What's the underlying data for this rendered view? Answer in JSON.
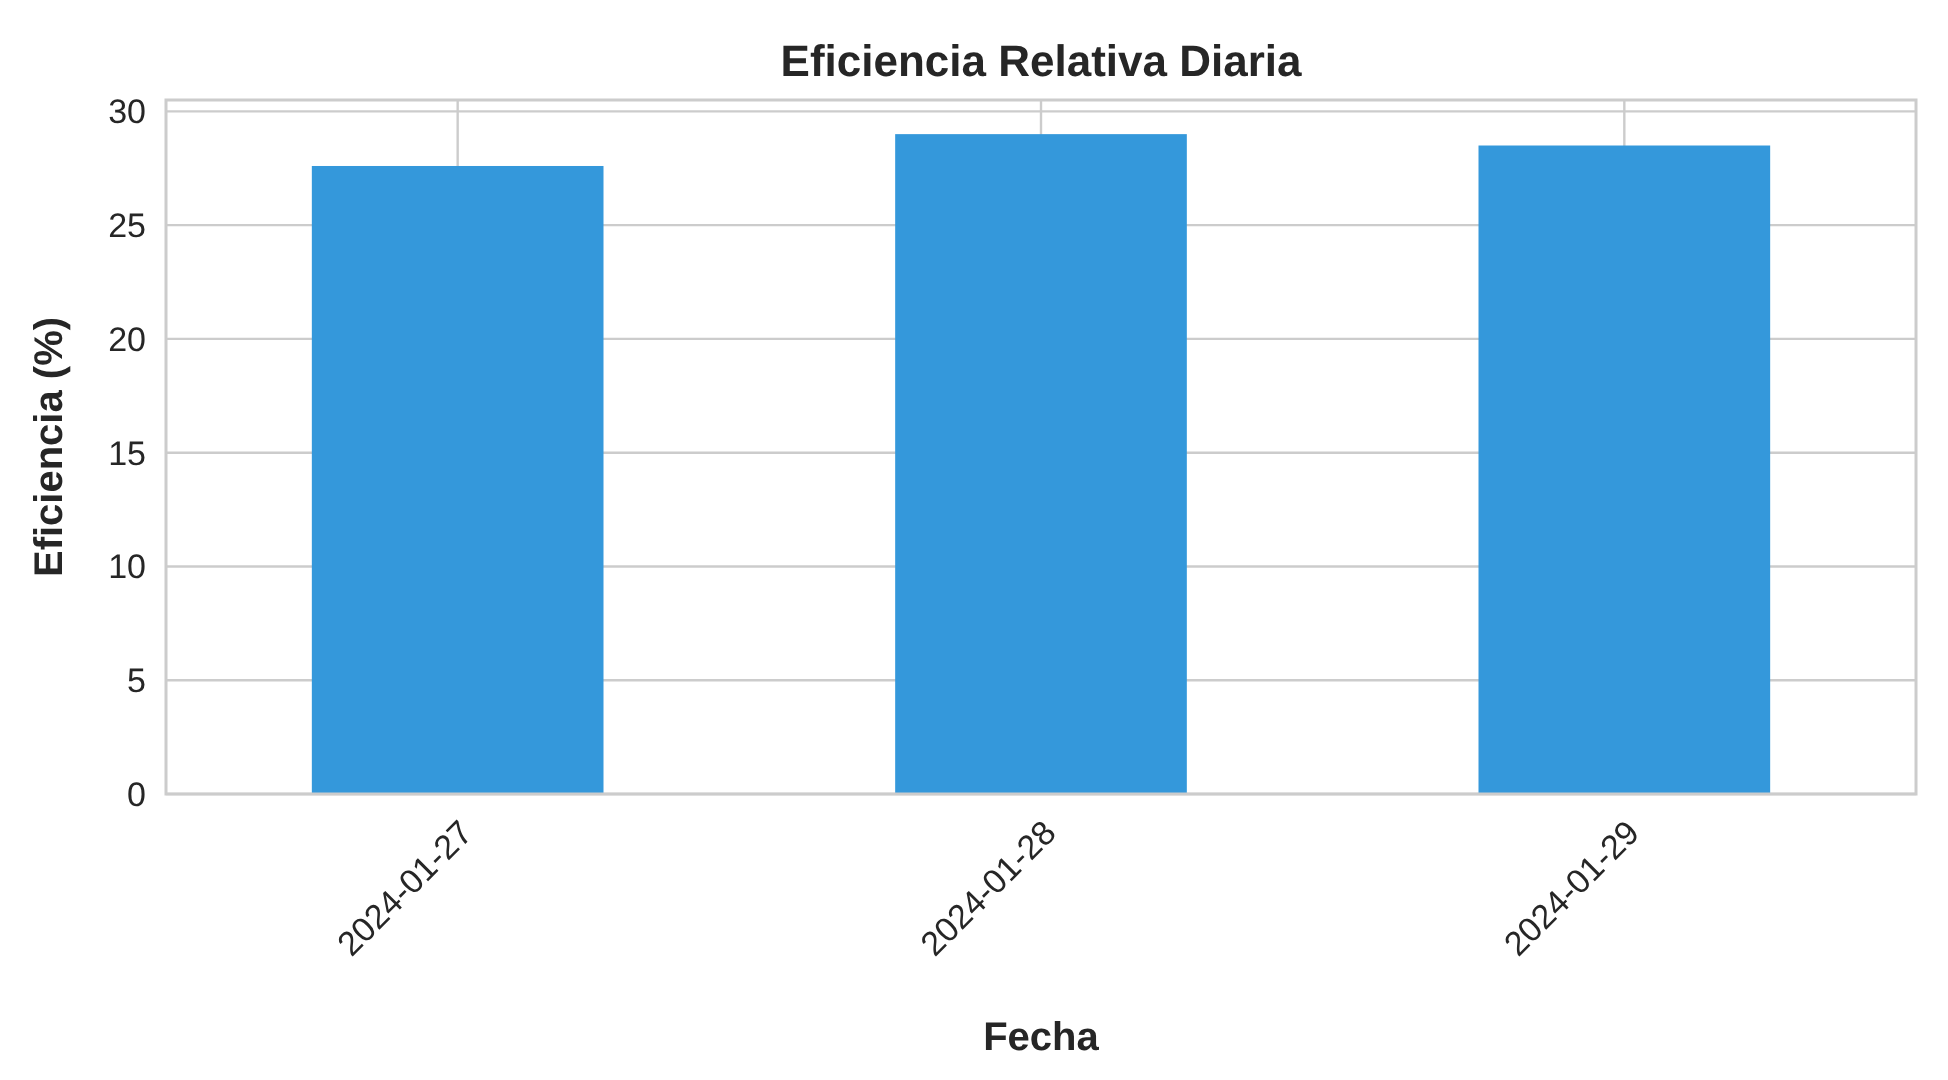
{
  "chart_data": {
    "type": "bar",
    "title": "Eficiencia Relativa Diaria",
    "xlabel": "Fecha",
    "ylabel": "Eficiencia (%)",
    "categories": [
      "2024-01-27",
      "2024-01-28",
      "2024-01-29"
    ],
    "values": [
      27.6,
      29.0,
      28.5
    ],
    "color": "#3498db",
    "ylim": [
      0,
      30.5
    ],
    "yticks": [
      0,
      5,
      10,
      15,
      20,
      25,
      30
    ],
    "grid": true
  }
}
